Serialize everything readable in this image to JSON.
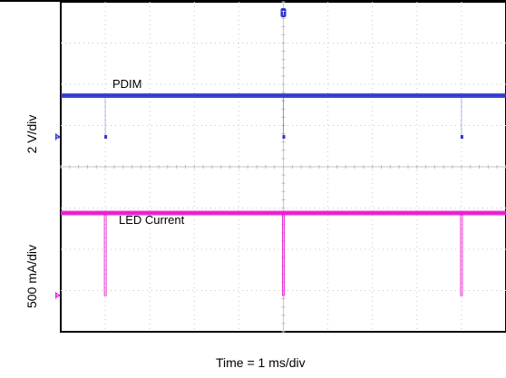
{
  "chart_data": {
    "type": "line",
    "title": "",
    "xlabel": "Time = 1 ms/div",
    "ylabel_top": "2 V/div",
    "ylabel_bottom": "500 mA/div",
    "x_divisions": 10,
    "y_divisions": 8,
    "xlim_ms": [
      0,
      10
    ],
    "grid": true,
    "series": [
      {
        "name": "PDIM",
        "color": "#2e35d0",
        "unit": "V",
        "scale_per_div": 2,
        "marker_label": "1",
        "level_div_above_marker": 1,
        "edge_times_ms": [
          1.0,
          5.0,
          9.0
        ]
      },
      {
        "name": "LED Current",
        "color": "#e818d0",
        "unit": "mA",
        "scale_per_div": 500,
        "marker_label": "3",
        "level_div_above_marker": 2.0,
        "edge_times_ms": [
          1.0,
          5.0,
          9.0
        ]
      }
    ]
  }
}
